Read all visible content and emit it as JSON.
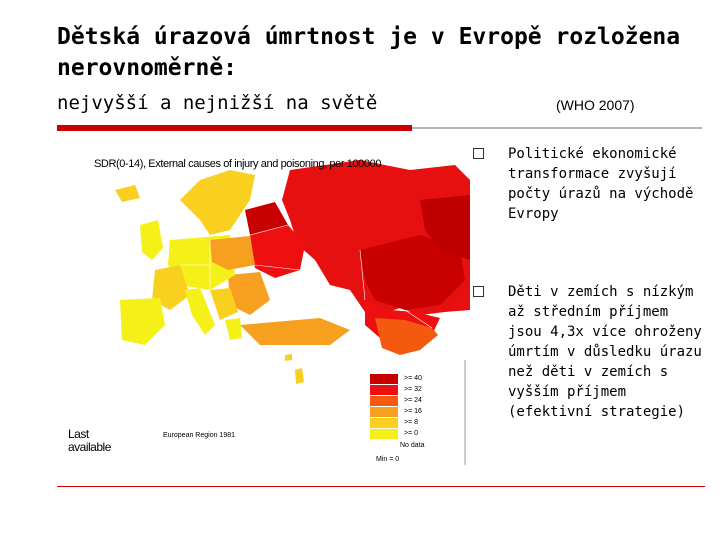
{
  "slide": {
    "title": "Dětská úrazová úmrtnost je v Evropě rozložena nerovnoměrně:",
    "subtitle": "nejvyšší a nejnižší na světě",
    "source": "(WHO 2007)"
  },
  "map": {
    "caption": "SDR(0-14), External causes of injury and poisoning, per 100000",
    "last_available": "Last available",
    "region_label": "European Region 1981",
    "legend": [
      {
        "label": ">= 40",
        "color": "#c80000"
      },
      {
        "label": ">= 32",
        "color": "#ee1010"
      },
      {
        "label": ">= 24",
        "color": "#f35a10"
      },
      {
        "label": ">= 16",
        "color": "#f7a020"
      },
      {
        "label": ">= 8",
        "color": "#f9d020"
      },
      {
        "label": ">= 0",
        "color": "#f5f018"
      }
    ],
    "no_data_label": "No data",
    "min_label": "Min = 0"
  },
  "bullets": [
    {
      "text": "Politické ekonomické transformace zvyšují počty úrazů na východě Evropy"
    },
    {
      "text": "Děti v zemích s nízkým až středním příjmem jsou 4,3x více ohroženy úmrtím v důsledku úrazu než děti v zemích s vyšším příjmem (efektivní strategie)"
    }
  ],
  "colors": {
    "accent_red": "#cc0000",
    "rule_gray": "#b5b5b5"
  }
}
